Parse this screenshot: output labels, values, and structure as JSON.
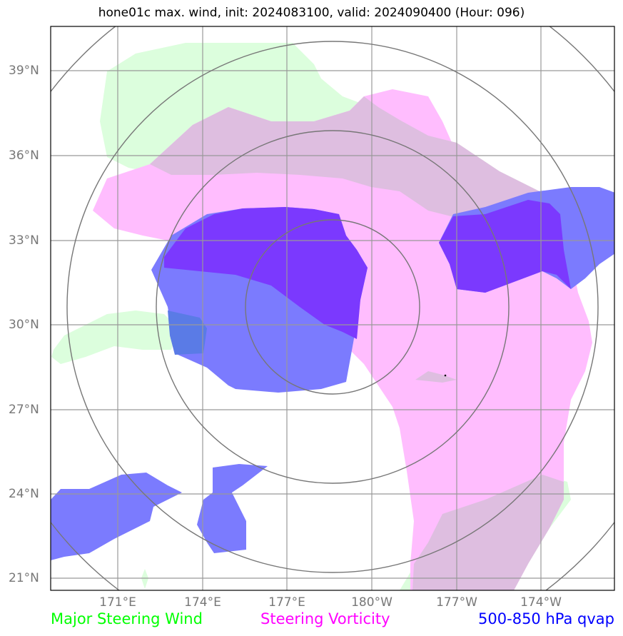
{
  "title": "hone01c max. wind, init: 2024083100, valid: 2024090400 (Hour: 096)",
  "lat_labels": [
    "39°N",
    "36°N",
    "33°N",
    "30°N",
    "27°N",
    "24°N",
    "21°N"
  ],
  "lon_labels": [
    "171°E",
    "174°E",
    "177°E",
    "180°W",
    "177°W",
    "174°W"
  ],
  "legend": [
    {
      "label": "Major Steering Wind",
      "color": "#00ff00"
    },
    {
      "label": "Steering Vorticity",
      "color": "#ff00ff"
    },
    {
      "label": "500-850 hPa qvap",
      "color": "#0000ff"
    }
  ],
  "colors": {
    "wind_fill": "#dcfedd",
    "vorticity_fill": "#ffbdfe",
    "overlap_fill": "#debee0",
    "qvap_fill": "#7b7bfe",
    "qvap_dark": "#7b39fe",
    "grid": "#999999",
    "range_rings": "#777777"
  }
}
